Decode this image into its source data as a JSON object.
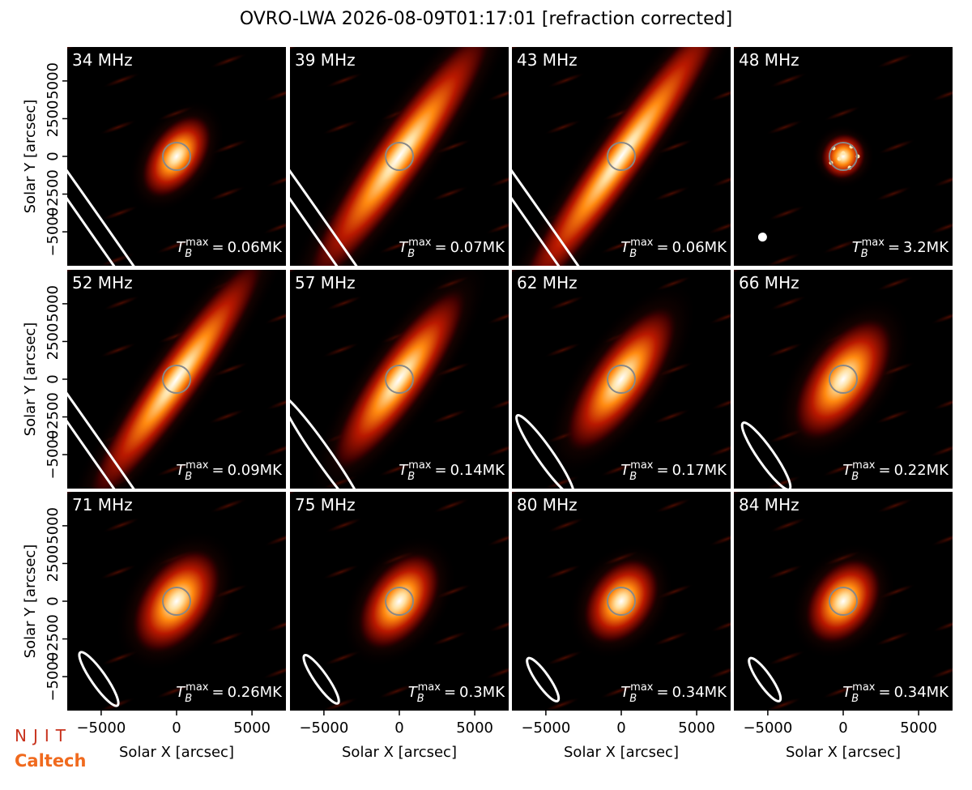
{
  "title": "OVRO-LWA 2026-08-09T01:17:01 [refraction corrected]",
  "logos": [
    "NJIT",
    "Caltech"
  ],
  "annotation_symbol": {
    "base": "T",
    "sub": "B",
    "sup": "max",
    "relation": "="
  },
  "chart_data": [
    {
      "type": "image",
      "title": "34 MHz",
      "annotation": "0.06MK",
      "ylabel": "Solar Y [arcsec]",
      "xlim": [
        -7250,
        7250
      ],
      "ylim": [
        -7250,
        7250
      ],
      "yticks": [
        {
          "value": -5000,
          "label": "−5000"
        },
        {
          "value": -2500,
          "label": "−2500"
        },
        0,
        2500,
        5000
      ]
    },
    {
      "type": "image",
      "title": "39 MHz",
      "annotation": "0.07MK",
      "xlim": [
        -7250,
        7250
      ],
      "ylim": [
        -7250,
        7250
      ]
    },
    {
      "type": "image",
      "title": "43 MHz",
      "annotation": "0.06MK",
      "xlim": [
        -7250,
        7250
      ],
      "ylim": [
        -7250,
        7250
      ]
    },
    {
      "type": "image",
      "title": "48 MHz",
      "annotation": "3.2MK",
      "xlim": [
        -7250,
        7250
      ],
      "ylim": [
        -7250,
        7250
      ]
    },
    {
      "type": "image",
      "title": "52 MHz",
      "annotation": "0.09MK",
      "ylabel": "Solar Y [arcsec]",
      "xlim": [
        -7250,
        7250
      ],
      "ylim": [
        -7250,
        7250
      ],
      "yticks": [
        {
          "value": -5000,
          "label": "−5000"
        },
        {
          "value": -2500,
          "label": "−2500"
        },
        0,
        2500,
        5000
      ]
    },
    {
      "type": "image",
      "title": "57 MHz",
      "annotation": "0.14MK",
      "xlim": [
        -7250,
        7250
      ],
      "ylim": [
        -7250,
        7250
      ]
    },
    {
      "type": "image",
      "title": "62 MHz",
      "annotation": "0.17MK",
      "xlim": [
        -7250,
        7250
      ],
      "ylim": [
        -7250,
        7250
      ]
    },
    {
      "type": "image",
      "title": "66 MHz",
      "annotation": "0.22MK",
      "xlim": [
        -7250,
        7250
      ],
      "ylim": [
        -7250,
        7250
      ]
    },
    {
      "type": "image",
      "title": "71 MHz",
      "annotation": "0.26MK",
      "xlabel": "Solar X [arcsec]",
      "ylabel": "Solar Y [arcsec]",
      "xlim": [
        -7250,
        7250
      ],
      "ylim": [
        -7250,
        7250
      ],
      "xticks": [
        {
          "value": -5000,
          "label": "−5000"
        },
        0,
        5000
      ],
      "yticks": [
        {
          "value": -5000,
          "label": "−5000"
        },
        {
          "value": -2500,
          "label": "−2500"
        },
        0,
        2500,
        5000
      ]
    },
    {
      "type": "image",
      "title": "75 MHz",
      "annotation": "0.3MK",
      "xlabel": "Solar X [arcsec]",
      "xlim": [
        -7250,
        7250
      ],
      "ylim": [
        -7250,
        7250
      ],
      "xticks": [
        {
          "value": -5000,
          "label": "−5000"
        },
        0,
        5000
      ]
    },
    {
      "type": "image",
      "title": "80 MHz",
      "annotation": "0.34MK",
      "xlabel": "Solar X [arcsec]",
      "xlim": [
        -7250,
        7250
      ],
      "ylim": [
        -7250,
        7250
      ],
      "xticks": [
        {
          "value": -5000,
          "label": "−5000"
        },
        0,
        5000
      ]
    },
    {
      "type": "image",
      "title": "84 MHz",
      "annotation": "0.34MK",
      "xlabel": "Solar X [arcsec]",
      "xlim": [
        -7250,
        7250
      ],
      "ylim": [
        -7250,
        7250
      ],
      "xticks": [
        {
          "value": -5000,
          "label": "−5000"
        },
        0,
        5000
      ]
    }
  ]
}
